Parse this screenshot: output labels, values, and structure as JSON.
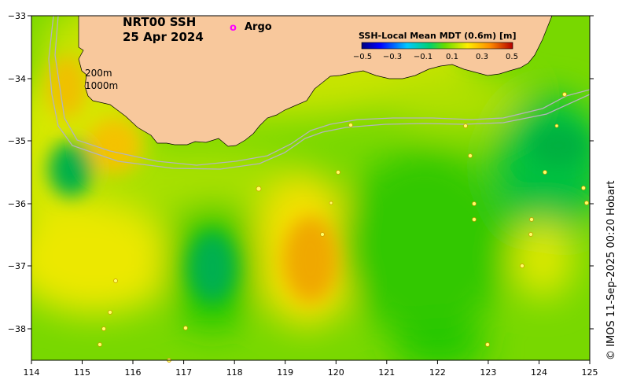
{
  "map": {
    "title_line1": "NRT00 SSH",
    "title_line2": "25 Apr 2024",
    "legend_argo_symbol": "o",
    "legend_argo_label": "Argo",
    "isobath_200": "200m",
    "isobath_1000": "1000m",
    "credit": "© IMOS 11-Sep-2025 00:20 Hobart",
    "x_ticks": [
      "114",
      "115",
      "116",
      "117",
      "118",
      "119",
      "120",
      "121",
      "122",
      "123",
      "124",
      "125"
    ],
    "y_ticks": [
      "−33",
      "−34",
      "−35",
      "−36",
      "−37",
      "−38"
    ],
    "colorbar": {
      "title": "SSH-Local Mean MDT (0.6m) [m]",
      "tick_labels": [
        "−0.5",
        "−0.3",
        "−0.1",
        "0.1",
        "0.3",
        "0.5"
      ]
    },
    "colors": {
      "land": "#f8c89c",
      "isobath": "#b4b4bc",
      "argo_marker": "#ff00ff"
    }
  }
}
